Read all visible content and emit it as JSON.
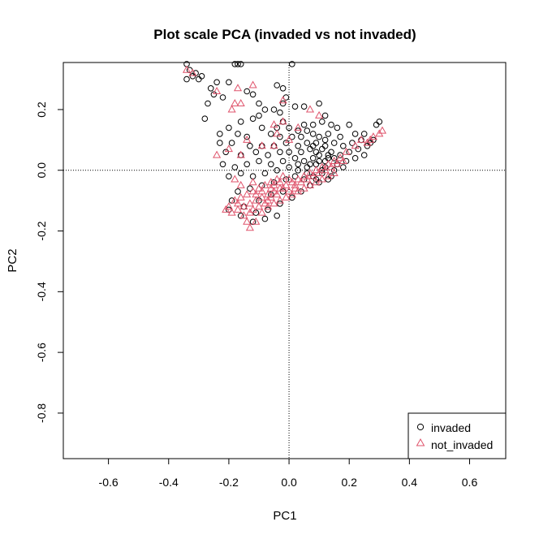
{
  "chart_data": {
    "type": "scatter",
    "title": "Plot scale PCA (invaded vs not invaded)",
    "xlabel": "PC1",
    "ylabel": "PC2",
    "xlim": [
      -0.75,
      0.72
    ],
    "ylim": [
      -0.95,
      0.355
    ],
    "xticks": [
      -0.6,
      -0.4,
      -0.2,
      0.0,
      0.2,
      0.4,
      0.6
    ],
    "xtick_labels": [
      "-0.6",
      "-0.4",
      "-0.2",
      "0.0",
      "0.2",
      "0.4",
      "0.6"
    ],
    "yticks": [
      -0.8,
      -0.6,
      -0.4,
      -0.2,
      0.0,
      0.2
    ],
    "ytick_labels": [
      "-0.8",
      "-0.6",
      "-0.4",
      "-0.2",
      "0.0",
      "0.2"
    ],
    "reference_lines": {
      "x": 0,
      "y": 0,
      "style": "dotted"
    },
    "legend_position": "bottom-right",
    "series": [
      {
        "name": "invaded",
        "marker": "circle",
        "color": "#000000",
        "points": [
          [
            -0.34,
            0.35
          ],
          [
            -0.33,
            0.33
          ],
          [
            -0.31,
            0.32
          ],
          [
            -0.29,
            0.31
          ],
          [
            -0.3,
            0.3
          ],
          [
            -0.34,
            0.3
          ],
          [
            -0.32,
            0.31
          ],
          [
            -0.2,
            0.29
          ],
          [
            -0.24,
            0.29
          ],
          [
            -0.26,
            0.27
          ],
          [
            -0.18,
            0.35
          ],
          [
            -0.17,
            0.35
          ],
          [
            -0.16,
            0.35
          ],
          [
            0.01,
            0.35
          ],
          [
            -0.04,
            0.28
          ],
          [
            -0.02,
            0.27
          ],
          [
            -0.14,
            0.26
          ],
          [
            -0.12,
            0.25
          ],
          [
            -0.25,
            0.25
          ],
          [
            -0.22,
            0.24
          ],
          [
            -0.27,
            0.22
          ],
          [
            -0.1,
            0.22
          ],
          [
            -0.02,
            0.22
          ],
          [
            -0.01,
            0.24
          ],
          [
            0.02,
            0.21
          ],
          [
            0.05,
            0.21
          ],
          [
            0.1,
            0.22
          ],
          [
            -0.08,
            0.2
          ],
          [
            -0.05,
            0.2
          ],
          [
            -0.03,
            0.19
          ],
          [
            -0.1,
            0.18
          ],
          [
            -0.12,
            0.17
          ],
          [
            0.12,
            0.18
          ],
          [
            -0.28,
            0.17
          ],
          [
            -0.16,
            0.16
          ],
          [
            -0.02,
            0.16
          ],
          [
            0.05,
            0.15
          ],
          [
            0.08,
            0.15
          ],
          [
            0.11,
            0.16
          ],
          [
            0.14,
            0.15
          ],
          [
            -0.2,
            0.14
          ],
          [
            -0.09,
            0.14
          ],
          [
            -0.04,
            0.14
          ],
          [
            0.0,
            0.14
          ],
          [
            0.03,
            0.13
          ],
          [
            0.06,
            0.13
          ],
          [
            0.16,
            0.14
          ],
          [
            0.2,
            0.15
          ],
          [
            0.3,
            0.16
          ],
          [
            0.29,
            0.15
          ],
          [
            0.25,
            0.12
          ],
          [
            0.24,
            0.1
          ],
          [
            -0.23,
            0.12
          ],
          [
            -0.17,
            0.12
          ],
          [
            -0.14,
            0.11
          ],
          [
            -0.06,
            0.12
          ],
          [
            -0.03,
            0.11
          ],
          [
            0.01,
            0.11
          ],
          [
            0.04,
            0.11
          ],
          [
            0.08,
            0.12
          ],
          [
            0.1,
            0.11
          ],
          [
            0.13,
            0.12
          ],
          [
            0.17,
            0.11
          ],
          [
            0.22,
            0.12
          ],
          [
            0.21,
            0.09
          ],
          [
            0.18,
            0.08
          ],
          [
            0.15,
            0.09
          ],
          [
            0.12,
            0.1
          ],
          [
            0.09,
            0.09
          ],
          [
            0.06,
            0.09
          ],
          [
            0.03,
            0.08
          ],
          [
            -0.01,
            0.09
          ],
          [
            -0.05,
            0.08
          ],
          [
            -0.09,
            0.08
          ],
          [
            -0.13,
            0.08
          ],
          [
            -0.19,
            0.09
          ],
          [
            -0.23,
            0.09
          ],
          [
            -0.21,
            0.06
          ],
          [
            -0.16,
            0.05
          ],
          [
            -0.11,
            0.06
          ],
          [
            -0.07,
            0.05
          ],
          [
            -0.03,
            0.06
          ],
          [
            0.0,
            0.06
          ],
          [
            0.04,
            0.06
          ],
          [
            0.07,
            0.07
          ],
          [
            0.11,
            0.07
          ],
          [
            0.14,
            0.06
          ],
          [
            0.17,
            0.05
          ],
          [
            0.2,
            0.06
          ],
          [
            0.23,
            0.07
          ],
          [
            0.26,
            0.08
          ],
          [
            0.27,
            0.09
          ],
          [
            0.28,
            0.1
          ],
          [
            0.25,
            0.05
          ],
          [
            0.22,
            0.04
          ],
          [
            0.19,
            0.03
          ],
          [
            0.16,
            0.02
          ],
          [
            0.13,
            0.04
          ],
          [
            0.1,
            0.05
          ],
          [
            0.08,
            0.04
          ],
          [
            0.05,
            0.03
          ],
          [
            0.02,
            0.04
          ],
          [
            -0.02,
            0.03
          ],
          [
            -0.06,
            0.02
          ],
          [
            -0.1,
            0.03
          ],
          [
            -0.14,
            0.02
          ],
          [
            -0.18,
            0.01
          ],
          [
            -0.22,
            0.02
          ],
          [
            -0.2,
            -0.02
          ],
          [
            -0.16,
            -0.01
          ],
          [
            -0.12,
            -0.02
          ],
          [
            -0.08,
            -0.01
          ],
          [
            -0.04,
            0.0
          ],
          [
            0.0,
            0.01
          ],
          [
            0.03,
            0.0
          ],
          [
            0.06,
            0.01
          ],
          [
            0.09,
            0.02
          ],
          [
            0.12,
            0.01
          ],
          [
            0.15,
            0.0
          ],
          [
            0.18,
            0.01
          ],
          [
            0.14,
            -0.02
          ],
          [
            0.11,
            -0.01
          ],
          [
            0.08,
            -0.02
          ],
          [
            0.05,
            -0.03
          ],
          [
            0.02,
            -0.02
          ],
          [
            -0.01,
            -0.03
          ],
          [
            -0.05,
            -0.04
          ],
          [
            -0.09,
            -0.05
          ],
          [
            -0.13,
            -0.06
          ],
          [
            -0.17,
            -0.07
          ],
          [
            -0.19,
            -0.1
          ],
          [
            -0.15,
            -0.12
          ],
          [
            -0.11,
            -0.14
          ],
          [
            -0.07,
            -0.13
          ],
          [
            -0.03,
            -0.11
          ],
          [
            0.01,
            -0.09
          ],
          [
            0.04,
            -0.07
          ],
          [
            0.07,
            -0.05
          ],
          [
            0.1,
            -0.04
          ],
          [
            0.13,
            -0.03
          ],
          [
            -0.12,
            -0.17
          ],
          [
            -0.08,
            -0.16
          ],
          [
            -0.16,
            -0.15
          ],
          [
            -0.2,
            -0.13
          ],
          [
            -0.04,
            -0.15
          ],
          [
            -0.1,
            -0.1
          ],
          [
            -0.06,
            -0.08
          ],
          [
            -0.02,
            -0.07
          ],
          [
            0.09,
            0.06
          ],
          [
            0.12,
            0.08
          ],
          [
            0.1,
            0.03
          ],
          [
            0.07,
            0.02
          ],
          [
            0.11,
            0.0
          ],
          [
            0.13,
            0.05
          ],
          [
            0.08,
            0.08
          ],
          [
            0.15,
            0.04
          ],
          [
            0.06,
            -0.01
          ],
          [
            0.03,
            0.02
          ],
          [
            0.09,
            -0.03
          ],
          [
            0.12,
            0.03
          ]
        ]
      },
      {
        "name": "not_invaded",
        "marker": "triangle",
        "color": "#DF536B",
        "points": [
          [
            -0.34,
            0.33
          ],
          [
            -0.32,
            0.32
          ],
          [
            -0.17,
            0.27
          ],
          [
            -0.12,
            0.28
          ],
          [
            -0.24,
            0.26
          ],
          [
            -0.16,
            0.22
          ],
          [
            -0.18,
            0.22
          ],
          [
            -0.19,
            0.2
          ],
          [
            -0.02,
            0.23
          ],
          [
            0.07,
            0.2
          ],
          [
            0.1,
            0.18
          ],
          [
            -0.05,
            0.15
          ],
          [
            -0.02,
            0.16
          ],
          [
            0.03,
            0.14
          ],
          [
            -0.04,
            0.12
          ],
          [
            0.0,
            0.1
          ],
          [
            -0.05,
            0.08
          ],
          [
            -0.14,
            0.1
          ],
          [
            -0.09,
            0.08
          ],
          [
            -0.2,
            0.07
          ],
          [
            -0.16,
            0.05
          ],
          [
            -0.24,
            0.05
          ],
          [
            0.3,
            0.12
          ],
          [
            0.31,
            0.13
          ],
          [
            0.27,
            0.1
          ],
          [
            0.24,
            0.1
          ],
          [
            0.22,
            0.08
          ],
          [
            0.19,
            0.06
          ],
          [
            0.17,
            0.04
          ],
          [
            0.15,
            0.03
          ],
          [
            0.13,
            0.02
          ],
          [
            0.11,
            0.01
          ],
          [
            0.09,
            0.0
          ],
          [
            0.07,
            -0.01
          ],
          [
            0.05,
            -0.02
          ],
          [
            0.03,
            -0.03
          ],
          [
            0.01,
            -0.04
          ],
          [
            -0.01,
            -0.05
          ],
          [
            -0.03,
            -0.06
          ],
          [
            -0.05,
            -0.07
          ],
          [
            -0.07,
            -0.08
          ],
          [
            -0.09,
            -0.09
          ],
          [
            -0.11,
            -0.1
          ],
          [
            -0.13,
            -0.11
          ],
          [
            -0.15,
            -0.12
          ],
          [
            -0.17,
            -0.13
          ],
          [
            -0.19,
            -0.14
          ],
          [
            -0.14,
            -0.17
          ],
          [
            -0.13,
            -0.19
          ],
          [
            -0.11,
            -0.17
          ],
          [
            -0.09,
            -0.14
          ],
          [
            -0.07,
            -0.12
          ],
          [
            -0.05,
            -0.11
          ],
          [
            -0.03,
            -0.1
          ],
          [
            -0.01,
            -0.09
          ],
          [
            0.01,
            -0.08
          ],
          [
            0.03,
            -0.07
          ],
          [
            0.05,
            -0.06
          ],
          [
            0.07,
            -0.05
          ],
          [
            0.09,
            -0.04
          ],
          [
            0.11,
            -0.03
          ],
          [
            0.13,
            -0.02
          ],
          [
            0.15,
            -0.01
          ],
          [
            -0.1,
            -0.06
          ],
          [
            -0.12,
            -0.07
          ],
          [
            -0.14,
            -0.08
          ],
          [
            -0.16,
            -0.05
          ],
          [
            -0.18,
            -0.03
          ],
          [
            -0.12,
            -0.04
          ],
          [
            -0.08,
            -0.05
          ],
          [
            -0.06,
            -0.04
          ],
          [
            -0.04,
            -0.03
          ],
          [
            -0.02,
            -0.02
          ],
          [
            0.0,
            -0.03
          ],
          [
            0.02,
            -0.05
          ],
          [
            -0.08,
            -0.11
          ],
          [
            -0.1,
            -0.12
          ],
          [
            -0.06,
            -0.09
          ],
          [
            -0.16,
            -0.09
          ],
          [
            -0.18,
            -0.1
          ],
          [
            -0.2,
            -0.12
          ],
          [
            -0.15,
            -0.15
          ],
          [
            -0.12,
            -0.13
          ],
          [
            -0.07,
            -0.1
          ],
          [
            0.04,
            -0.04
          ],
          [
            0.06,
            -0.03
          ],
          [
            0.08,
            -0.02
          ],
          [
            0.1,
            -0.01
          ],
          [
            0.12,
            0.0
          ],
          [
            -0.02,
            -0.06
          ],
          [
            0.0,
            -0.07
          ],
          [
            -0.04,
            -0.08
          ],
          [
            -0.11,
            -0.08
          ],
          [
            -0.13,
            -0.14
          ],
          [
            -0.17,
            -0.11
          ],
          [
            -0.09,
            -0.07
          ],
          [
            0.02,
            -0.06
          ],
          [
            -0.06,
            -0.06
          ],
          [
            -0.21,
            -0.13
          ],
          [
            0.14,
            0.01
          ],
          [
            0.16,
            0.02
          ],
          [
            0.18,
            0.03
          ],
          [
            -0.03,
            -0.04
          ],
          [
            -0.05,
            -0.05
          ],
          [
            0.26,
            0.09
          ],
          [
            0.28,
            0.11
          ]
        ]
      }
    ]
  }
}
